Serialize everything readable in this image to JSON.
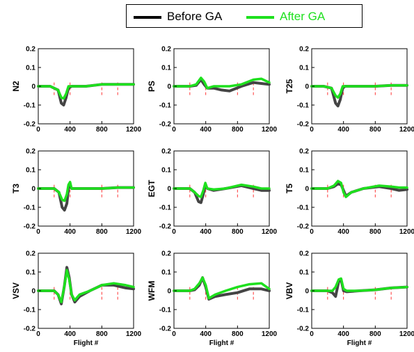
{
  "legend": {
    "before_label": "Before GA",
    "after_label": "After GA"
  },
  "colors": {
    "before": "#444444",
    "after": "#1ee01e",
    "marker": "#ff3333",
    "axis": "#000000"
  },
  "chart_data": [
    {
      "type": "line",
      "ylabel": "N2",
      "xlabel": "",
      "xlim": [
        0,
        1200
      ],
      "ylim": [
        -0.2,
        0.2
      ],
      "xticks": [
        0,
        400,
        800,
        1200
      ],
      "yticks": [
        -0.2,
        -0.1,
        0,
        0.1,
        0.2
      ],
      "markers_x": [
        200,
        400,
        800,
        1000
      ],
      "series": [
        {
          "name": "Before GA",
          "x": [
            0,
            150,
            250,
            290,
            320,
            350,
            380,
            420,
            600,
            800,
            1000,
            1200
          ],
          "y": [
            0,
            0,
            -0.02,
            -0.09,
            -0.1,
            -0.06,
            -0.01,
            0.0,
            0.0,
            0.01,
            0.01,
            0.01
          ]
        },
        {
          "name": "After GA",
          "x": [
            0,
            150,
            250,
            290,
            320,
            350,
            380,
            420,
            600,
            800,
            1000,
            1200
          ],
          "y": [
            0,
            0,
            -0.02,
            -0.06,
            -0.065,
            -0.04,
            0.0,
            0.0,
            0.0,
            0.01,
            0.01,
            0.01
          ]
        }
      ]
    },
    {
      "type": "line",
      "ylabel": "PS",
      "xlabel": "",
      "xlim": [
        0,
        1200
      ],
      "ylim": [
        -0.2,
        0.2
      ],
      "xticks": [
        0,
        400,
        800,
        1200
      ],
      "yticks": [
        -0.2,
        -0.1,
        0,
        0.1,
        0.2
      ],
      "markers_x": [
        200,
        400,
        800,
        1000
      ],
      "series": [
        {
          "name": "Before GA",
          "x": [
            0,
            200,
            280,
            340,
            380,
            420,
            500,
            600,
            700,
            850,
            1000,
            1100,
            1200
          ],
          "y": [
            0,
            0,
            0.005,
            0.035,
            0.01,
            -0.01,
            -0.01,
            -0.02,
            -0.025,
            0.0,
            0.02,
            0.015,
            0.01
          ]
        },
        {
          "name": "After GA",
          "x": [
            0,
            200,
            280,
            340,
            380,
            420,
            500,
            600,
            700,
            850,
            1000,
            1100,
            1200
          ],
          "y": [
            0,
            0,
            0.01,
            0.045,
            0.025,
            -0.01,
            0.0,
            0.0,
            0.0,
            0.01,
            0.035,
            0.04,
            0.02
          ]
        }
      ]
    },
    {
      "type": "line",
      "ylabel": "T25",
      "xlabel": "",
      "xlim": [
        0,
        1200
      ],
      "ylim": [
        -0.2,
        0.2
      ],
      "xticks": [
        0,
        400,
        800,
        1200
      ],
      "yticks": [
        -0.2,
        -0.1,
        0,
        0.1,
        0.2
      ],
      "markers_x": [
        200,
        400,
        800,
        1000
      ],
      "series": [
        {
          "name": "Before GA",
          "x": [
            0,
            150,
            250,
            300,
            330,
            360,
            390,
            420,
            600,
            800,
            1000,
            1200
          ],
          "y": [
            0,
            0,
            -0.01,
            -0.09,
            -0.105,
            -0.07,
            -0.01,
            0,
            0,
            0,
            0.005,
            0.005
          ]
        },
        {
          "name": "After GA",
          "x": [
            0,
            150,
            250,
            300,
            330,
            360,
            390,
            420,
            600,
            800,
            1000,
            1200
          ],
          "y": [
            0,
            0,
            -0.01,
            -0.05,
            -0.06,
            -0.04,
            0.0,
            0,
            0,
            0,
            0.005,
            0.005
          ]
        }
      ]
    },
    {
      "type": "line",
      "ylabel": "T3",
      "xlabel": "",
      "xlim": [
        0,
        1200
      ],
      "ylim": [
        -0.2,
        0.2
      ],
      "xticks": [
        0,
        400,
        800,
        1200
      ],
      "yticks": [
        -0.2,
        -0.1,
        0,
        0.1,
        0.2
      ],
      "markers_x": [
        200,
        400,
        800,
        1000
      ],
      "series": [
        {
          "name": "Before GA",
          "x": [
            0,
            200,
            260,
            300,
            330,
            360,
            380,
            400,
            420,
            600,
            800,
            1000,
            1200
          ],
          "y": [
            0,
            0,
            -0.02,
            -0.1,
            -0.115,
            -0.08,
            0.0,
            0.02,
            0.0,
            0.0,
            0,
            0.005,
            0.005
          ]
        },
        {
          "name": "After GA",
          "x": [
            0,
            200,
            260,
            300,
            330,
            360,
            380,
            400,
            420,
            600,
            800,
            1000,
            1200
          ],
          "y": [
            0,
            0,
            -0.02,
            -0.06,
            -0.065,
            -0.03,
            0.02,
            0.035,
            0.0,
            0.0,
            0,
            0.005,
            0.005
          ]
        }
      ]
    },
    {
      "type": "line",
      "ylabel": "EGT",
      "xlabel": "",
      "xlim": [
        0,
        1200
      ],
      "ylim": [
        -0.2,
        0.2
      ],
      "xticks": [
        0,
        400,
        800,
        1200
      ],
      "yticks": [
        -0.2,
        -0.1,
        0,
        0.1,
        0.2
      ],
      "markers_x": [
        200,
        400,
        800,
        1000
      ],
      "series": [
        {
          "name": "Before GA",
          "x": [
            0,
            200,
            260,
            310,
            340,
            370,
            395,
            420,
            500,
            650,
            850,
            1000,
            1100,
            1200
          ],
          "y": [
            0,
            0,
            -0.02,
            -0.07,
            -0.075,
            -0.03,
            0.02,
            0.0,
            -0.01,
            0.0,
            0.015,
            0.0,
            -0.01,
            -0.01
          ]
        },
        {
          "name": "After GA",
          "x": [
            0,
            200,
            260,
            310,
            340,
            370,
            395,
            420,
            500,
            650,
            850,
            1000,
            1100,
            1200
          ],
          "y": [
            0,
            0,
            -0.02,
            -0.04,
            -0.045,
            -0.01,
            0.03,
            0.0,
            -0.005,
            0.0,
            0.02,
            0.01,
            0.0,
            0.0
          ]
        }
      ]
    },
    {
      "type": "line",
      "ylabel": "T5",
      "xlabel": "",
      "xlim": [
        0,
        1200
      ],
      "ylim": [
        -0.2,
        0.2
      ],
      "xticks": [
        0,
        400,
        800,
        1200
      ],
      "yticks": [
        -0.2,
        -0.1,
        0,
        0.1,
        0.2
      ],
      "markers_x": [
        200,
        400,
        800,
        1000
      ],
      "series": [
        {
          "name": "Before GA",
          "x": [
            0,
            200,
            280,
            330,
            370,
            400,
            430,
            500,
            650,
            850,
            1000,
            1100,
            1200
          ],
          "y": [
            0,
            0,
            0.01,
            0.025,
            0.02,
            -0.01,
            -0.04,
            -0.02,
            0.0,
            0.01,
            0.0,
            -0.01,
            -0.005
          ]
        },
        {
          "name": "After GA",
          "x": [
            0,
            200,
            280,
            330,
            370,
            400,
            430,
            500,
            650,
            850,
            1000,
            1100,
            1200
          ],
          "y": [
            0,
            0,
            0.015,
            0.04,
            0.03,
            -0.02,
            -0.045,
            -0.02,
            0.0,
            0.015,
            0.01,
            0.005,
            0.005
          ]
        }
      ]
    },
    {
      "type": "line",
      "ylabel": "VSV",
      "xlabel": "Flight #",
      "xlim": [
        0,
        1200
      ],
      "ylim": [
        -0.2,
        0.2
      ],
      "xticks": [
        0,
        400,
        800,
        1200
      ],
      "yticks": [
        -0.2,
        -0.1,
        0,
        0.1,
        0.2
      ],
      "markers_x": [
        200,
        400,
        800,
        1000
      ],
      "series": [
        {
          "name": "Before GA",
          "x": [
            0,
            200,
            250,
            290,
            330,
            360,
            390,
            420,
            460,
            520,
            650,
            800,
            950,
            1100,
            1200
          ],
          "y": [
            0,
            0,
            -0.02,
            -0.07,
            0.03,
            0.125,
            0.07,
            -0.02,
            -0.06,
            -0.03,
            0.0,
            0.03,
            0.03,
            0.015,
            0.01
          ]
        },
        {
          "name": "After GA",
          "x": [
            0,
            200,
            250,
            290,
            330,
            360,
            390,
            420,
            460,
            520,
            650,
            800,
            950,
            1100,
            1200
          ],
          "y": [
            0,
            0,
            -0.02,
            -0.06,
            0.03,
            0.11,
            0.06,
            -0.02,
            -0.05,
            -0.02,
            0.0,
            0.03,
            0.04,
            0.03,
            0.02
          ]
        }
      ]
    },
    {
      "type": "line",
      "ylabel": "WFM",
      "xlabel": "Flight #",
      "xlim": [
        0,
        1200
      ],
      "ylim": [
        -0.2,
        0.2
      ],
      "xticks": [
        0,
        400,
        800,
        1200
      ],
      "yticks": [
        -0.2,
        -0.1,
        0,
        0.1,
        0.2
      ],
      "markers_x": [
        200,
        400,
        800,
        1000
      ],
      "series": [
        {
          "name": "Before GA",
          "x": [
            0,
            200,
            260,
            320,
            360,
            400,
            440,
            520,
            650,
            800,
            950,
            1100,
            1200
          ],
          "y": [
            0,
            0,
            0.005,
            0.03,
            0.07,
            0.02,
            -0.045,
            -0.03,
            -0.02,
            -0.01,
            0.01,
            0.01,
            0.0
          ]
        },
        {
          "name": "After GA",
          "x": [
            0,
            200,
            260,
            320,
            360,
            400,
            440,
            520,
            650,
            800,
            950,
            1100,
            1200
          ],
          "y": [
            0,
            0,
            0.01,
            0.04,
            0.07,
            0.03,
            -0.04,
            -0.02,
            0.0,
            0.02,
            0.035,
            0.04,
            0.01
          ]
        }
      ]
    },
    {
      "type": "line",
      "ylabel": "VBV",
      "xlabel": "Flight #",
      "xlim": [
        0,
        1200
      ],
      "ylim": [
        -0.2,
        0.2
      ],
      "xticks": [
        0,
        400,
        800,
        1200
      ],
      "yticks": [
        -0.2,
        -0.1,
        0,
        0.1,
        0.2
      ],
      "markers_x": [
        200,
        400,
        800,
        1000
      ],
      "series": [
        {
          "name": "Before GA",
          "x": [
            0,
            200,
            260,
            300,
            340,
            370,
            400,
            440,
            600,
            800,
            1000,
            1200
          ],
          "y": [
            0,
            0,
            -0.01,
            -0.03,
            0.05,
            0.06,
            0.0,
            -0.005,
            0.0,
            0.005,
            0.015,
            0.02
          ]
        },
        {
          "name": "After GA",
          "x": [
            0,
            200,
            260,
            300,
            340,
            370,
            400,
            440,
            600,
            800,
            1000,
            1200
          ],
          "y": [
            0,
            0,
            0.0,
            0.02,
            0.06,
            0.065,
            0.01,
            0.0,
            0.0,
            0.005,
            0.015,
            0.02
          ]
        }
      ]
    }
  ]
}
